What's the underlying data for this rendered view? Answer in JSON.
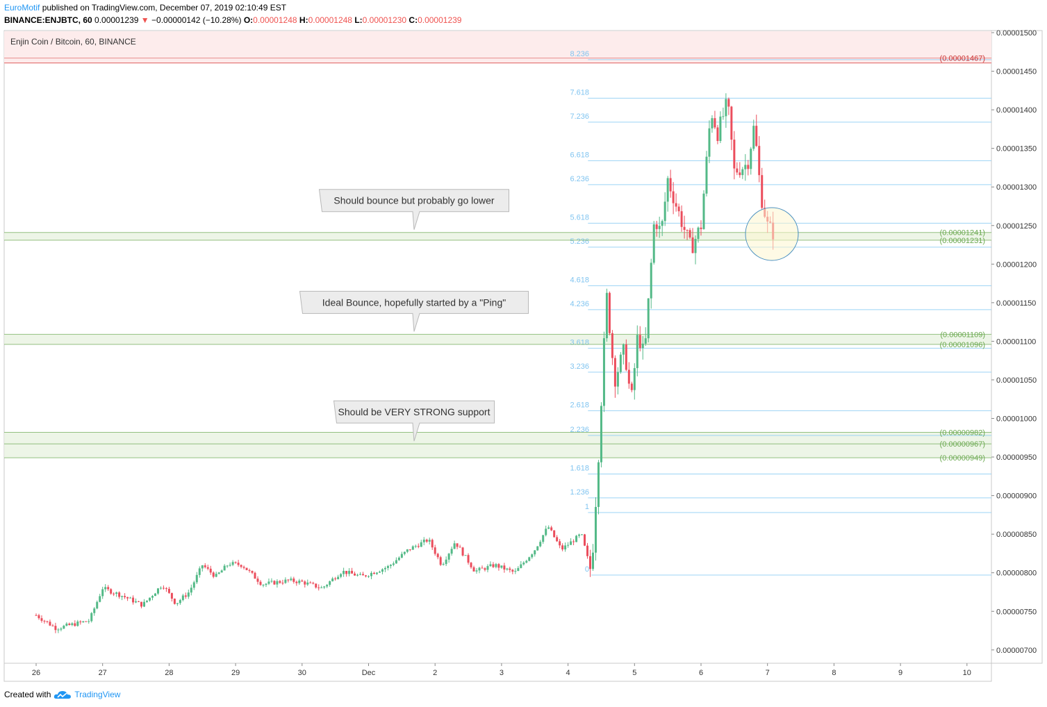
{
  "header": {
    "author": "EuroMotif",
    "published": "published on TradingView.com, December 07, 2019 02:10:49 EST",
    "symbol": "BINANCE:ENJBTC, 60",
    "last": "0.00001239",
    "change": "−0.00000142 (−10.28%)",
    "o_label": "O:",
    "o": "0.00001248",
    "h_label": "H:",
    "h": "0.00001248",
    "l_label": "L:",
    "l": "0.00001230",
    "c_label": "C:",
    "c": "0.00001239"
  },
  "footer": {
    "created": "Created with",
    "brand": "TradingView"
  },
  "colors": {
    "up": "#53b987",
    "down": "#eb4d5c",
    "fib": "#9bd3f5",
    "fibText": "#80c4f0",
    "zone": "#6aa84f",
    "zoneText": "#6aa84f",
    "resist": "#e06666"
  },
  "chart_data": {
    "type": "candlestick",
    "title": "Enjin Coin / Bitcoin, 60, BINANCE",
    "x_ticks": [
      "26",
      "27",
      "28",
      "29",
      "30",
      "Dec",
      "2",
      "3",
      "4",
      "5",
      "6",
      "7",
      "8",
      "9",
      "10"
    ],
    "y_ticks": [
      "0.00001500",
      "0.00001450",
      "0.00001400",
      "0.00001350",
      "0.00001300",
      "0.00001250",
      "0.00001200",
      "0.00001150",
      "0.00001100",
      "0.00001050",
      "0.00001000",
      "0.00000950",
      "0.00000900",
      "0.00000850",
      "0.00000800",
      "0.00000750",
      "0.00000700"
    ],
    "ylim": [
      6.8e-06,
      1.52e-05
    ],
    "fib_levels": [
      {
        "label": "0",
        "value": 7.97e-06
      },
      {
        "label": "1",
        "value": 8.78e-06
      },
      {
        "label": "1.236",
        "value": 8.97e-06
      },
      {
        "label": "1.618",
        "value": 9.28e-06
      },
      {
        "label": "2.236",
        "value": 9.78e-06
      },
      {
        "label": "2.618",
        "value": 1.01e-05
      },
      {
        "label": "3.236",
        "value": 1.06e-05
      },
      {
        "label": "3.618",
        "value": 1.091e-05
      },
      {
        "label": "4.236",
        "value": 1.141e-05
      },
      {
        "label": "4.618",
        "value": 1.172e-05
      },
      {
        "label": "5.236",
        "value": 1.222e-05
      },
      {
        "label": "5.618",
        "value": 1.253e-05
      },
      {
        "label": "6.236",
        "value": 1.303e-05
      },
      {
        "label": "6.618",
        "value": 1.334e-05
      },
      {
        "label": "7.236",
        "value": 1.384e-05
      },
      {
        "label": "7.618",
        "value": 1.415e-05
      },
      {
        "label": "8.236",
        "value": 1.465e-05
      }
    ],
    "price_tags": [
      {
        "text": "(0.00001467)",
        "value": 1.467e-05,
        "kind": "resist"
      },
      {
        "text": "(0.00001241)",
        "value": 1.241e-05,
        "kind": "zone"
      },
      {
        "text": "(0.00001231)",
        "value": 1.231e-05,
        "kind": "zone"
      },
      {
        "text": "(0.00001109)",
        "value": 1.109e-05,
        "kind": "zone"
      },
      {
        "text": "(0.00001096)",
        "value": 1.096e-05,
        "kind": "zone"
      },
      {
        "text": "(0.00000982)",
        "value": 9.82e-06,
        "kind": "zone"
      },
      {
        "text": "(0.00000967)",
        "value": 9.67e-06,
        "kind": "zone"
      },
      {
        "text": "(0.00000949)",
        "value": 9.49e-06,
        "kind": "zone"
      }
    ],
    "annotations": [
      {
        "text": "Should bounce but probably go lower",
        "value": 1.241e-05
      },
      {
        "text": "Ideal Bounce, hopefully started by a \"Ping\"",
        "value": 1.109e-05
      },
      {
        "text": "Should be VERY STRONG support",
        "value": 9.67e-06
      }
    ],
    "keypoints": [
      {
        "day": 0.0,
        "price": 7.45e-06
      },
      {
        "day": 0.3,
        "price": 7.28e-06
      },
      {
        "day": 0.8,
        "price": 7.38e-06
      },
      {
        "day": 1.0,
        "price": 7.8e-06
      },
      {
        "day": 1.3,
        "price": 7.7e-06
      },
      {
        "day": 1.6,
        "price": 7.58e-06
      },
      {
        "day": 1.9,
        "price": 7.85e-06
      },
      {
        "day": 2.1,
        "price": 7.6e-06
      },
      {
        "day": 2.3,
        "price": 7.75e-06
      },
      {
        "day": 2.5,
        "price": 8.1e-06
      },
      {
        "day": 2.7,
        "price": 7.95e-06
      },
      {
        "day": 2.9,
        "price": 8.12e-06
      },
      {
        "day": 3.1,
        "price": 8.1e-06
      },
      {
        "day": 3.4,
        "price": 7.85e-06
      },
      {
        "day": 3.8,
        "price": 7.9e-06
      },
      {
        "day": 4.0,
        "price": 7.88e-06
      },
      {
        "day": 4.3,
        "price": 7.8e-06
      },
      {
        "day": 4.6,
        "price": 8.02e-06
      },
      {
        "day": 4.9,
        "price": 7.95e-06
      },
      {
        "day": 5.3,
        "price": 8.08e-06
      },
      {
        "day": 5.6,
        "price": 8.3e-06
      },
      {
        "day": 5.9,
        "price": 8.43e-06
      },
      {
        "day": 6.1,
        "price": 8.1e-06
      },
      {
        "day": 6.3,
        "price": 8.4e-06
      },
      {
        "day": 6.6,
        "price": 8.02e-06
      },
      {
        "day": 6.9,
        "price": 8.1e-06
      },
      {
        "day": 7.2,
        "price": 8e-06
      },
      {
        "day": 7.5,
        "price": 8.3e-06
      },
      {
        "day": 7.7,
        "price": 8.6e-06
      },
      {
        "day": 7.9,
        "price": 8.3e-06
      },
      {
        "day": 8.2,
        "price": 8.5e-06
      },
      {
        "day": 8.35,
        "price": 8e-06
      },
      {
        "day": 8.45,
        "price": 9.4e-06
      },
      {
        "day": 8.58,
        "price": 1.16e-05
      },
      {
        "day": 8.7,
        "price": 1.05e-05
      },
      {
        "day": 8.85,
        "price": 1.09e-05
      },
      {
        "day": 8.95,
        "price": 1.02e-05
      },
      {
        "day": 9.05,
        "price": 1.11e-05
      },
      {
        "day": 9.15,
        "price": 1.08e-05
      },
      {
        "day": 9.3,
        "price": 1.26e-05
      },
      {
        "day": 9.4,
        "price": 1.24e-05
      },
      {
        "day": 9.5,
        "price": 1.31e-05
      },
      {
        "day": 9.65,
        "price": 1.27e-05
      },
      {
        "day": 9.85,
        "price": 1.22e-05
      },
      {
        "day": 10.0,
        "price": 1.25e-05
      },
      {
        "day": 10.15,
        "price": 1.4e-05
      },
      {
        "day": 10.25,
        "price": 1.37e-05
      },
      {
        "day": 10.4,
        "price": 1.41e-05
      },
      {
        "day": 10.5,
        "price": 1.32e-05
      },
      {
        "day": 10.7,
        "price": 1.33e-05
      },
      {
        "day": 10.8,
        "price": 1.38e-05
      },
      {
        "day": 10.9,
        "price": 1.29e-05
      },
      {
        "day": 11.0,
        "price": 1.25e-05
      },
      {
        "day": 11.1,
        "price": 1.239e-05
      }
    ]
  }
}
